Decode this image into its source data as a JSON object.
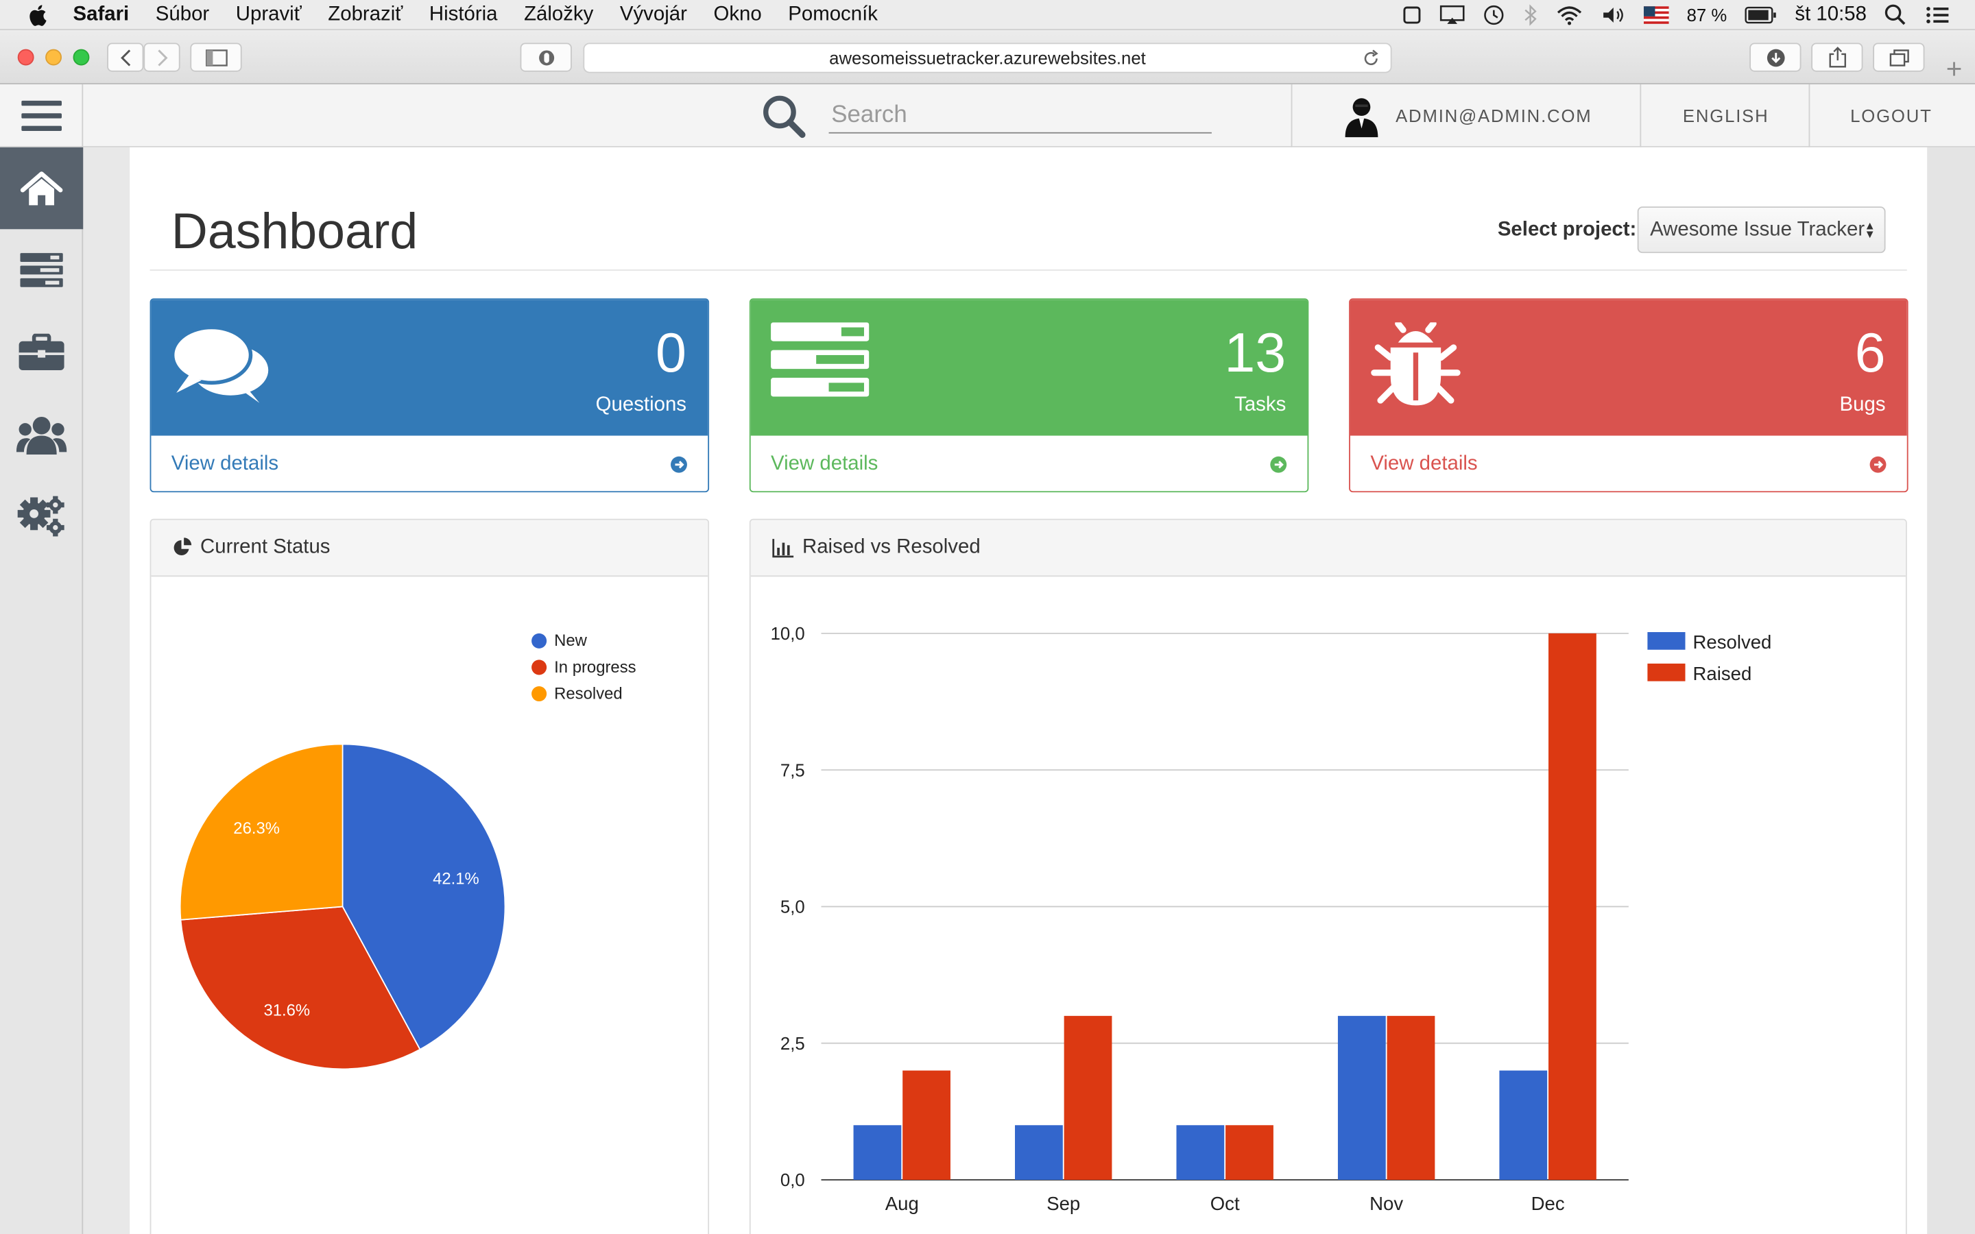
{
  "menubar": {
    "app": "Safari",
    "menus": [
      "Súbor",
      "Upraviť",
      "Zobraziť",
      "História",
      "Záložky",
      "Vývojár",
      "Okno",
      "Pomocník"
    ],
    "battery": "87 %",
    "clock": "št 10:58"
  },
  "browser": {
    "url": "awesomeissuetracker.azurewebsites.net",
    "new_tab": "+"
  },
  "header": {
    "search_placeholder": "Search",
    "user": "ADMIN@ADMIN.COM",
    "language": "ENGLISH",
    "logout": "LOGOUT"
  },
  "sidebar": {
    "items": [
      {
        "icon": "home-icon",
        "active": true
      },
      {
        "icon": "tasks-icon",
        "active": false
      },
      {
        "icon": "briefcase-icon",
        "active": false
      },
      {
        "icon": "users-icon",
        "active": false
      },
      {
        "icon": "gears-icon",
        "active": false
      }
    ]
  },
  "page": {
    "title": "Dashboard",
    "select_label": "Select project:",
    "selected_project": "Awesome Issue Tracker"
  },
  "cards": [
    {
      "count": "0",
      "label": "Questions",
      "link": "View details",
      "color": "#337ab7",
      "icon": "comments-icon"
    },
    {
      "count": "13",
      "label": "Tasks",
      "link": "View details",
      "color": "#5cb85c",
      "icon": "tasks-icon"
    },
    {
      "count": "6",
      "label": "Bugs",
      "link": "View details",
      "color": "#d9534f",
      "icon": "bug-icon"
    }
  ],
  "panels": {
    "status_title": "Current Status",
    "raised_title": "Raised vs Resolved"
  },
  "chart_data": [
    {
      "type": "pie",
      "legend": [
        "New",
        "In progress",
        "Resolved"
      ],
      "values": [
        42.1,
        31.6,
        26.3
      ],
      "labels": [
        "42.1%",
        "31.6%",
        "26.3%"
      ],
      "colors": [
        "#3366cc",
        "#dc3912",
        "#ff9900"
      ],
      "legend_position": "top-right"
    },
    {
      "type": "bar",
      "categories": [
        "Aug",
        "Sep",
        "Oct",
        "Nov",
        "Dec"
      ],
      "series": [
        {
          "name": "Resolved",
          "values": [
            1,
            1,
            1,
            3,
            2
          ],
          "color": "#3366cc"
        },
        {
          "name": "Raised",
          "values": [
            2,
            3,
            1,
            3,
            10
          ],
          "color": "#dc3912"
        }
      ],
      "ylim": [
        0,
        10
      ],
      "yticks": [
        "0,0",
        "2,5",
        "5,0",
        "7,5",
        "10,0"
      ],
      "grid": true,
      "legend_position": "right"
    }
  ]
}
